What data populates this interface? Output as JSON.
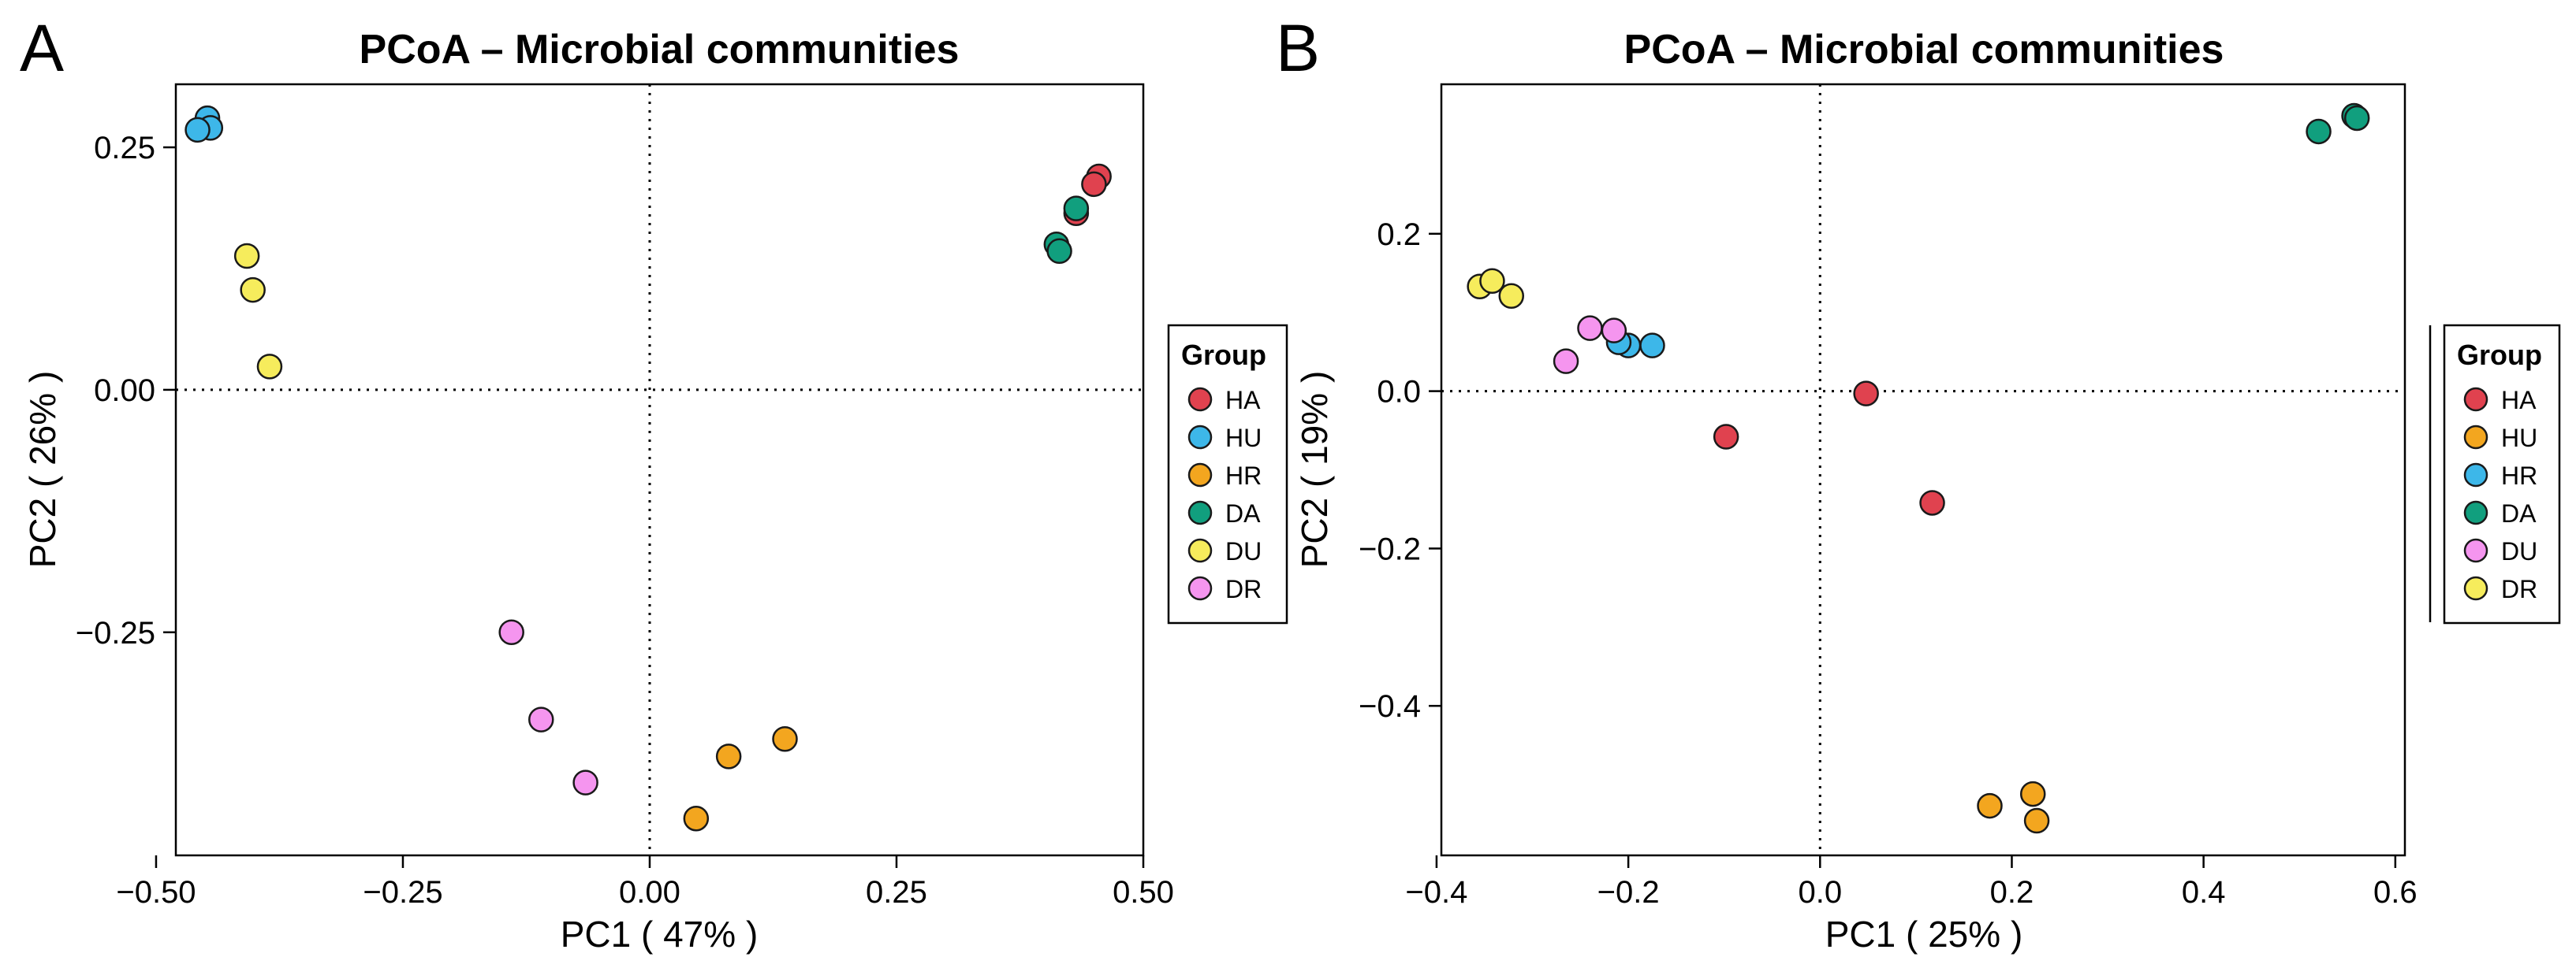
{
  "colors": {
    "red": "#E0424F",
    "blue": "#3DB7E9",
    "orange": "#F3A61F",
    "green": "#119F7E",
    "yellow": "#F6EC5C",
    "pink": "#F595EF"
  },
  "chart_data": [
    {
      "type": "scatter",
      "panel_letter": "A",
      "title": "PCoA – Microbial communities",
      "xlabel": "PC1 ( 47% )",
      "ylabel": "PC2 ( 26% )",
      "xlim": [
        -0.48,
        0.5
      ],
      "ylim": [
        -0.48,
        0.315
      ],
      "xticks": [
        -0.5,
        -0.25,
        0.0,
        0.25,
        0.5
      ],
      "xtick_labels": [
        "−0.50",
        "−0.25",
        "0.00",
        "0.25",
        "0.50"
      ],
      "yticks": [
        -0.25,
        0.0,
        0.25
      ],
      "ytick_labels": [
        "−0.25",
        "0.00",
        "0.25"
      ],
      "legend": {
        "title": "Group",
        "entries": [
          {
            "label": "HA",
            "color": "#E0424F"
          },
          {
            "label": "HU",
            "color": "#3DB7E9"
          },
          {
            "label": "HR",
            "color": "#F3A61F"
          },
          {
            "label": "DA",
            "color": "#119F7E"
          },
          {
            "label": "DU",
            "color": "#F6EC5C"
          },
          {
            "label": "DR",
            "color": "#F595EF"
          }
        ]
      },
      "series": [
        {
          "name": "HA",
          "points": [
            [
              0.455,
              0.22
            ],
            [
              0.45,
              0.212
            ],
            [
              0.432,
              0.182
            ]
          ]
        },
        {
          "name": "HU",
          "points": [
            [
              -0.448,
              0.28
            ],
            [
              -0.445,
              0.27
            ],
            [
              -0.458,
              0.268
            ]
          ]
        },
        {
          "name": "HR",
          "points": [
            [
              0.137,
              -0.36
            ],
            [
              0.08,
              -0.378
            ],
            [
              0.047,
              -0.442
            ]
          ]
        },
        {
          "name": "DA",
          "points": [
            [
              0.432,
              0.187
            ],
            [
              0.412,
              0.15
            ],
            [
              0.415,
              0.143
            ]
          ]
        },
        {
          "name": "DU",
          "points": [
            [
              -0.408,
              0.138
            ],
            [
              -0.402,
              0.103
            ],
            [
              -0.385,
              0.024
            ]
          ]
        },
        {
          "name": "DR",
          "points": [
            [
              -0.14,
              -0.25
            ],
            [
              -0.11,
              -0.34
            ],
            [
              -0.065,
              -0.405
            ]
          ]
        }
      ]
    },
    {
      "type": "scatter",
      "panel_letter": "B",
      "title": "PCoA – Microbial communities",
      "xlabel": "PC1 ( 25% )",
      "ylabel": "PC2 ( 19% )",
      "xlim": [
        -0.395,
        0.61
      ],
      "ylim": [
        -0.59,
        0.39
      ],
      "xticks": [
        -0.4,
        -0.2,
        0.0,
        0.2,
        0.4,
        0.6
      ],
      "xtick_labels": [
        "−0.4",
        "−0.2",
        "0.0",
        "0.2",
        "0.4",
        "0.6"
      ],
      "yticks": [
        -0.4,
        -0.2,
        0.0,
        0.2
      ],
      "ytick_labels": [
        "−0.4",
        "−0.2",
        "0.0",
        "0.2"
      ],
      "legend": {
        "title": "Group",
        "entries": [
          {
            "label": "HA",
            "color": "#E0424F"
          },
          {
            "label": "HU",
            "color": "#F3A61F"
          },
          {
            "label": "HR",
            "color": "#3DB7E9"
          },
          {
            "label": "DA",
            "color": "#119F7E"
          },
          {
            "label": "DU",
            "color": "#F595EF"
          },
          {
            "label": "DR",
            "color": "#F6EC5C"
          }
        ]
      },
      "series": [
        {
          "name": "HA",
          "points": [
            [
              0.048,
              -0.003
            ],
            [
              -0.098,
              -0.058
            ],
            [
              0.117,
              -0.142
            ]
          ]
        },
        {
          "name": "HU",
          "points": [
            [
              0.177,
              -0.527
            ],
            [
              0.222,
              -0.512
            ],
            [
              0.226,
              -0.546
            ]
          ]
        },
        {
          "name": "HR",
          "points": [
            [
              -0.175,
              0.058
            ],
            [
              -0.2,
              0.058
            ],
            [
              -0.21,
              0.062
            ]
          ]
        },
        {
          "name": "DA",
          "points": [
            [
              0.52,
              0.33
            ],
            [
              0.557,
              0.35
            ],
            [
              0.56,
              0.347
            ]
          ]
        },
        {
          "name": "DU",
          "points": [
            [
              -0.24,
              0.08
            ],
            [
              -0.215,
              0.077
            ],
            [
              -0.265,
              0.038
            ]
          ]
        },
        {
          "name": "DR",
          "points": [
            [
              -0.355,
              0.133
            ],
            [
              -0.342,
              0.14
            ],
            [
              -0.322,
              0.121
            ]
          ]
        }
      ]
    }
  ]
}
